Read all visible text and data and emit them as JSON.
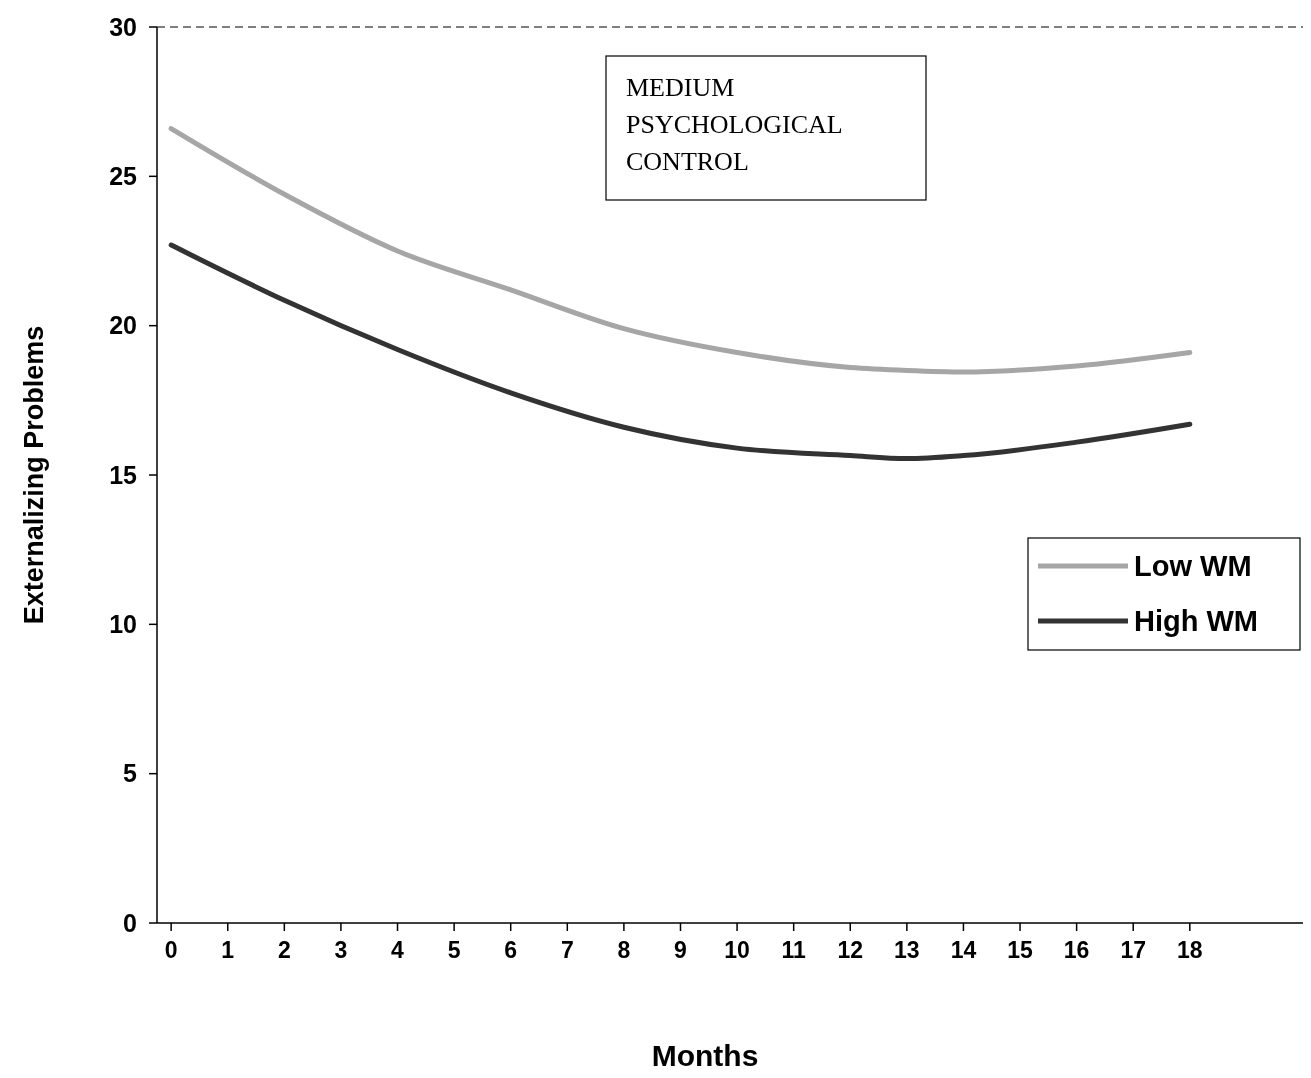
{
  "chart_data": {
    "type": "line",
    "xlabel": "Months",
    "ylabel": "Externalizing Problems",
    "annotations": [
      "MEDIUM PSYCHOLOGICAL CONTROL"
    ],
    "x": [
      0,
      2,
      4,
      6,
      8,
      10,
      12,
      13,
      14,
      16,
      18
    ],
    "series": [
      {
        "name": "Low WM",
        "color": "#a6a6a6",
        "values": [
          26.6,
          24.4,
          22.5,
          21.2,
          19.9,
          19.1,
          18.6,
          18.5,
          18.45,
          18.65,
          19.1
        ]
      },
      {
        "name": "High WM",
        "color": "#333333",
        "values": [
          22.7,
          20.85,
          19.2,
          17.75,
          16.6,
          15.9,
          15.65,
          15.55,
          15.65,
          16.1,
          16.7
        ]
      }
    ],
    "xlim": [
      -0.25,
      20
    ],
    "xticks": [
      0,
      1,
      2,
      3,
      4,
      5,
      6,
      7,
      8,
      9,
      10,
      11,
      12,
      13,
      14,
      15,
      16,
      17,
      18
    ],
    "ylim": [
      0,
      30
    ],
    "yticks": [
      0,
      5,
      10,
      15,
      20,
      25,
      30
    ],
    "ref_lines": [
      {
        "axis": "y",
        "value": 30,
        "line_style": "dashed",
        "color": "#000000"
      }
    ],
    "legend": "right",
    "marker": "none",
    "line_style": "solid",
    "grid": false
  }
}
